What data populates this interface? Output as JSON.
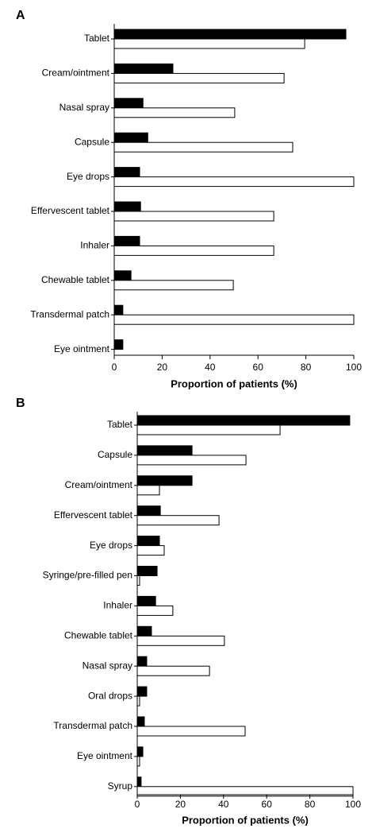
{
  "chart_data": [
    {
      "type": "barh",
      "title": "A",
      "xlabel": "Proportion of patients (%)",
      "categories": [
        "Tablet",
        "Cream/ointment",
        "Nasal spray",
        "Capsule",
        "Eye drops",
        "Effervescent tablet",
        "Inhaler",
        "Chewable tablet",
        "Transdermal patch",
        "Eye ointment"
      ],
      "series": [
        {
          "color": "#000000",
          "values": [
            96.7,
            24.5,
            12,
            14,
            10.6,
            11,
            10.6,
            7,
            3.6,
            3.6
          ]
        },
        {
          "color": "#ffffff",
          "values": [
            79.5,
            70.9,
            50.3,
            74.5,
            100,
            66.6,
            66.6,
            49.7,
            100,
            0
          ]
        }
      ],
      "xlim": [
        0,
        100
      ],
      "xticks": [
        0,
        20,
        40,
        60,
        80,
        100
      ]
    },
    {
      "type": "barh",
      "title": "B",
      "xlabel": "Proportion of patients (%)",
      "categories": [
        "Tablet",
        "Capsule",
        "Cream/ointment",
        "Effervescent tablet",
        "Eye drops",
        "Syringe/pre-filled pen",
        "Inhaler",
        "Chewable tablet",
        "Nasal spray",
        "Oral drops",
        "Transdermal patch",
        "Eye ointment",
        "Syrup"
      ],
      "series": [
        {
          "color": "#000000",
          "values": [
            98.5,
            25.4,
            25.4,
            10.7,
            10.3,
            9.2,
            8.5,
            6.6,
            4.4,
            4.4,
            3.3,
            2.6,
            1.8
          ]
        },
        {
          "color": "#ffffff",
          "values": [
            66.2,
            50.4,
            10.3,
            37.9,
            12.5,
            1.1,
            16.5,
            40.4,
            33.5,
            1.1,
            50,
            1.1,
            100
          ]
        }
      ],
      "xlim": [
        0,
        100
      ],
      "xticks": [
        0,
        20,
        40,
        60,
        80,
        100
      ]
    }
  ]
}
